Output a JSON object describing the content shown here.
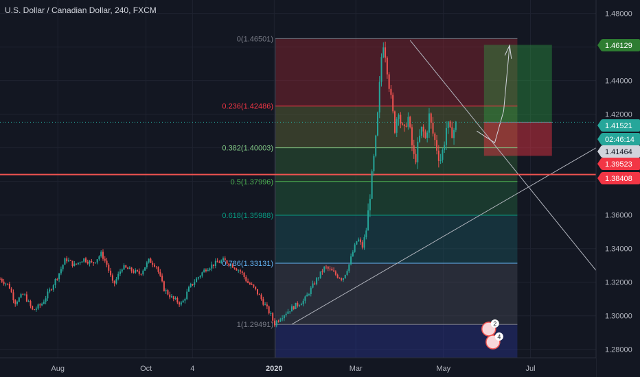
{
  "header": {
    "title": "U.S. Dollar / Canadian Dollar, 240, FXCM"
  },
  "colors": {
    "background": "#131722",
    "candle_up": "#26a69a",
    "candle_down": "#ef5350",
    "price_line": "#ef5350",
    "last_price": "#26a69a",
    "grid": "#1e222d"
  },
  "chart_data": {
    "type": "candlestick",
    "title": "U.S. Dollar / Canadian Dollar, 240, FXCM",
    "ylim": [
      1.275,
      1.488
    ],
    "y_ticks": [
      "1.48000",
      "1.46000",
      "1.44000",
      "1.42000",
      "1.40000",
      "1.38000",
      "1.36000",
      "1.34000",
      "1.32000",
      "1.30000",
      "1.28000"
    ],
    "x_ticks": [
      {
        "label": "Aug",
        "bold": false,
        "frac": 0.097
      },
      {
        "label": "Oct",
        "bold": false,
        "frac": 0.245
      },
      {
        "label": "4",
        "bold": false,
        "frac": 0.323
      },
      {
        "label": "2020",
        "bold": true,
        "frac": 0.46
      },
      {
        "label": "Mar",
        "bold": false,
        "frac": 0.597
      },
      {
        "label": "May",
        "bold": false,
        "frac": 0.744
      },
      {
        "label": "Jul",
        "bold": false,
        "frac": 0.89
      }
    ],
    "price_series": [
      [
        0.0,
        1.322
      ],
      [
        0.015,
        1.318
      ],
      [
        0.025,
        1.308
      ],
      [
        0.04,
        1.313
      ],
      [
        0.055,
        1.303
      ],
      [
        0.07,
        1.307
      ],
      [
        0.085,
        1.316
      ],
      [
        0.1,
        1.326
      ],
      [
        0.11,
        1.334
      ],
      [
        0.125,
        1.33
      ],
      [
        0.14,
        1.334
      ],
      [
        0.155,
        1.331
      ],
      [
        0.17,
        1.337
      ],
      [
        0.18,
        1.33
      ],
      [
        0.19,
        1.318
      ],
      [
        0.205,
        1.329
      ],
      [
        0.22,
        1.327
      ],
      [
        0.235,
        1.325
      ],
      [
        0.25,
        1.333
      ],
      [
        0.262,
        1.33
      ],
      [
        0.275,
        1.316
      ],
      [
        0.29,
        1.31
      ],
      [
        0.305,
        1.307
      ],
      [
        0.318,
        1.317
      ],
      [
        0.33,
        1.322
      ],
      [
        0.345,
        1.328
      ],
      [
        0.36,
        1.331
      ],
      [
        0.375,
        1.333
      ],
      [
        0.39,
        1.33
      ],
      [
        0.405,
        1.326
      ],
      [
        0.415,
        1.32
      ],
      [
        0.425,
        1.317
      ],
      [
        0.435,
        1.312
      ],
      [
        0.445,
        1.306
      ],
      [
        0.455,
        1.3
      ],
      [
        0.46,
        1.295
      ],
      [
        0.47,
        1.299
      ],
      [
        0.48,
        1.302
      ],
      [
        0.495,
        1.306
      ],
      [
        0.51,
        1.309
      ],
      [
        0.52,
        1.315
      ],
      [
        0.53,
        1.321
      ],
      [
        0.545,
        1.329
      ],
      [
        0.555,
        1.327
      ],
      [
        0.565,
        1.324
      ],
      [
        0.575,
        1.322
      ],
      [
        0.585,
        1.33
      ],
      [
        0.592,
        1.338
      ],
      [
        0.6,
        1.346
      ],
      [
        0.608,
        1.341
      ],
      [
        0.615,
        1.352
      ],
      [
        0.62,
        1.37
      ],
      [
        0.626,
        1.389
      ],
      [
        0.632,
        1.41
      ],
      [
        0.637,
        1.438
      ],
      [
        0.642,
        1.465
      ],
      [
        0.647,
        1.455
      ],
      [
        0.652,
        1.44
      ],
      [
        0.658,
        1.423
      ],
      [
        0.663,
        1.41
      ],
      [
        0.668,
        1.425
      ],
      [
        0.673,
        1.413
      ],
      [
        0.678,
        1.409
      ],
      [
        0.684,
        1.42
      ],
      [
        0.69,
        1.404
      ],
      [
        0.696,
        1.391
      ],
      [
        0.702,
        1.403
      ],
      [
        0.708,
        1.412
      ],
      [
        0.714,
        1.405
      ],
      [
        0.72,
        1.419
      ],
      [
        0.726,
        1.409
      ],
      [
        0.732,
        1.401
      ],
      [
        0.738,
        1.392
      ],
      [
        0.744,
        1.4
      ],
      [
        0.75,
        1.415
      ],
      [
        0.756,
        1.408
      ],
      [
        0.762,
        1.411
      ],
      [
        0.766,
        1.415
      ]
    ],
    "fib_levels": [
      {
        "label": "0(1.46501)",
        "price": 1.46501,
        "color": "#787b86"
      },
      {
        "label": "0.236(1.42486)",
        "price": 1.42486,
        "color": "#f23645"
      },
      {
        "label": "0.382(1.40003)",
        "price": 1.40003,
        "color": "#81c784"
      },
      {
        "label": "0.5(1.37996)",
        "price": 1.37996,
        "color": "#4caf50"
      },
      {
        "label": "0.618(1.35988)",
        "price": 1.35988,
        "color": "#089981"
      },
      {
        "label": "0.786(1.33131)",
        "price": 1.33131,
        "color": "#64b5f6"
      },
      {
        "label": "1(1.29491)",
        "price": 1.29491,
        "color": "#787b86"
      }
    ],
    "price_tags": [
      {
        "label": "1.46129",
        "price": 1.46129,
        "bg": "#2e7d32",
        "fg": "#ffffff"
      },
      {
        "label": "1.41521",
        "price": 1.41521,
        "bg": "#26a69a",
        "fg": "#ffffff"
      },
      {
        "label": "02:46:14",
        "price": 1.41,
        "bg": "#26a69a",
        "fg": "#ffffff"
      },
      {
        "label": "1.41464",
        "price": 1.40464,
        "bg": "#d1d4dc",
        "fg": "#131722"
      },
      {
        "label": "1.39523",
        "price": 1.39523,
        "bg": "#f23645",
        "fg": "#ffffff"
      },
      {
        "label": "1.38408",
        "price": 1.38408,
        "bg": "#f23645",
        "fg": "#ffffff"
      }
    ],
    "long_position": {
      "entry": 1.41521,
      "target": 1.46129,
      "stop": 1.39523
    },
    "horizontal_line": 1.38408,
    "badges": [
      "2",
      "4"
    ]
  }
}
